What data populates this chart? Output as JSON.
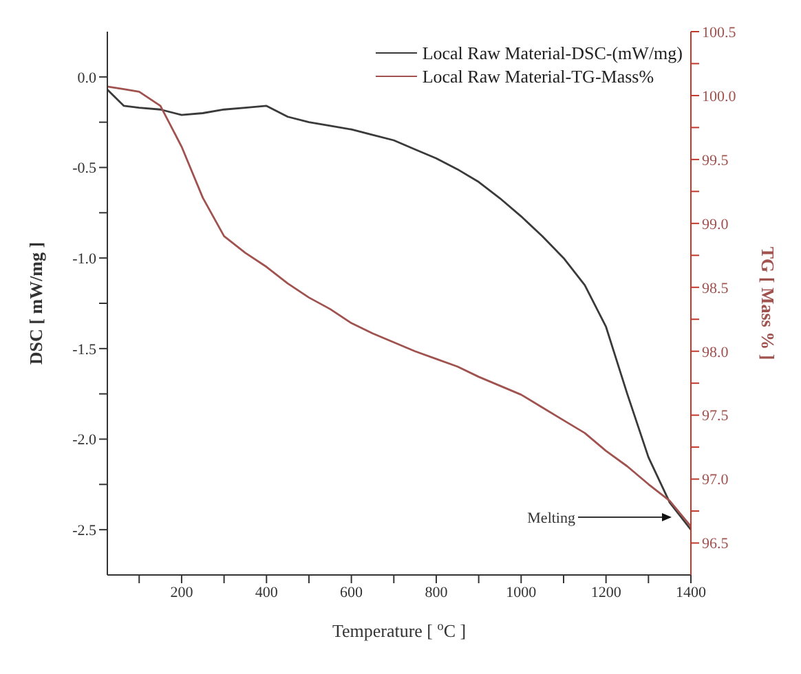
{
  "chart_data": {
    "type": "line",
    "xlabel": "Temperature [ $^{o}$C ]",
    "ylabel": "DSC [ mW/mg ]",
    "y2label": "TG [ Mass % ]",
    "x": [
      25,
      64,
      100,
      150,
      200,
      250,
      300,
      350,
      400,
      450,
      500,
      550,
      600,
      650,
      700,
      750,
      800,
      850,
      900,
      950,
      1000,
      1050,
      1100,
      1150,
      1200,
      1250,
      1300,
      1350,
      1400
    ],
    "series": [
      {
        "name": "Local Raw Material-DSC-(mW/mg)",
        "color": "#3a3a3a",
        "axis": "y",
        "values": [
          -0.07,
          -0.16,
          -0.17,
          -0.18,
          -0.21,
          -0.2,
          -0.18,
          -0.17,
          -0.16,
          -0.22,
          -0.25,
          -0.27,
          -0.29,
          -0.32,
          -0.35,
          -0.4,
          -0.45,
          -0.51,
          -0.58,
          -0.67,
          -0.77,
          -0.88,
          -1.0,
          -1.15,
          -1.38,
          -1.75,
          -2.1,
          -2.35,
          -2.5
        ]
      },
      {
        "name": "Local Raw Material-TG-Mass%",
        "color": "#a0524f",
        "axis": "y2",
        "values": [
          100.07,
          100.05,
          100.03,
          99.92,
          99.6,
          99.2,
          98.9,
          98.77,
          98.66,
          98.53,
          98.42,
          98.33,
          98.22,
          98.14,
          98.07,
          98.0,
          97.94,
          97.88,
          97.8,
          97.73,
          97.66,
          97.56,
          97.46,
          97.36,
          97.22,
          97.1,
          96.96,
          96.83,
          96.63
        ]
      }
    ],
    "xlim": [
      25,
      1400
    ],
    "xticks": [
      {
        "value": 100,
        "label": null
      },
      200,
      {
        "value": 300,
        "label": null
      },
      400,
      {
        "value": 500,
        "label": null
      },
      600,
      {
        "value": 700,
        "label": null
      },
      800,
      {
        "value": 900,
        "label": null
      },
      1000,
      {
        "value": 1100,
        "label": null
      },
      1200,
      {
        "value": 1300,
        "label": null
      },
      1400
    ],
    "ylim": [
      -2.75,
      0.25
    ],
    "yticks": [
      {
        "value": -2.5,
        "label": "-2.5"
      },
      {
        "value": -2.25,
        "label": null
      },
      {
        "value": -2,
        "label": "-2.0"
      },
      {
        "value": -1.75,
        "label": null
      },
      {
        "value": -1.5,
        "label": "-1.5"
      },
      {
        "value": -1.25,
        "label": null
      },
      {
        "value": -1,
        "label": "-1.0"
      },
      {
        "value": -0.75,
        "label": null
      },
      {
        "value": -0.5,
        "label": "-0.5"
      },
      {
        "value": -0.25,
        "label": null
      },
      {
        "value": 0,
        "label": "0.0"
      }
    ],
    "y2lim": [
      96.25,
      100.5
    ],
    "y2ticks": [
      {
        "value": 96.5,
        "label": "96.5"
      },
      {
        "value": 96.75,
        "label": null
      },
      {
        "value": 97,
        "label": "97.0"
      },
      {
        "value": 97.25,
        "label": null
      },
      {
        "value": 97.5,
        "label": "97.5"
      },
      {
        "value": 97.75,
        "label": null
      },
      {
        "value": 98,
        "label": "98.0"
      },
      {
        "value": 98.25,
        "label": null
      },
      {
        "value": 98.5,
        "label": "98.5"
      },
      {
        "value": 98.75,
        "label": null
      },
      {
        "value": 99,
        "label": "99.0"
      },
      {
        "value": 99.25,
        "label": null
      },
      {
        "value": 99.5,
        "label": "99.5"
      },
      {
        "value": 99.75,
        "label": null
      },
      {
        "value": 100,
        "label": "100.0"
      },
      {
        "value": 100.25,
        "label": null
      },
      {
        "value": 100.5,
        "label": "100.5"
      }
    ],
    "annotations": [
      "Melting"
    ],
    "legend": "top right",
    "grid": false,
    "marker": "none",
    "line_style": "solid"
  }
}
